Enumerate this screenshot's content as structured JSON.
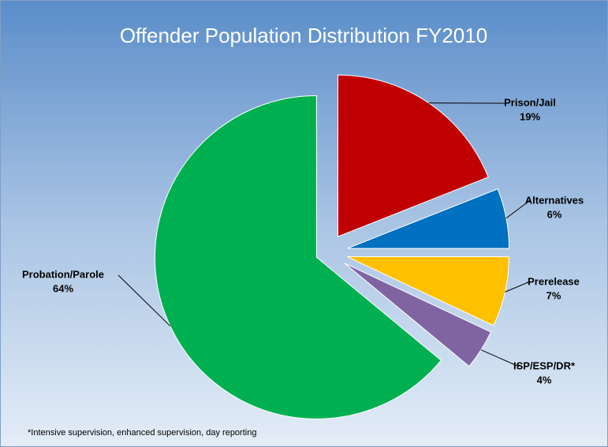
{
  "chart_data": {
    "type": "pie",
    "title": "Offender Population Distribution FY2010",
    "categories": [
      "Prison/Jail",
      "Alternatives",
      "Prerelease",
      "ISP/ESP/DR*",
      "Probation/Parole"
    ],
    "values": [
      19,
      6,
      7,
      4,
      64
    ],
    "value_labels": [
      "19%",
      "6%",
      "7%",
      "4%",
      "64%"
    ],
    "colors": [
      "#c00000",
      "#0070c0",
      "#ffc000",
      "#8064a2",
      "#00b050"
    ],
    "footnote": "*Intensive supervision, enhanced supervision, day reporting"
  }
}
